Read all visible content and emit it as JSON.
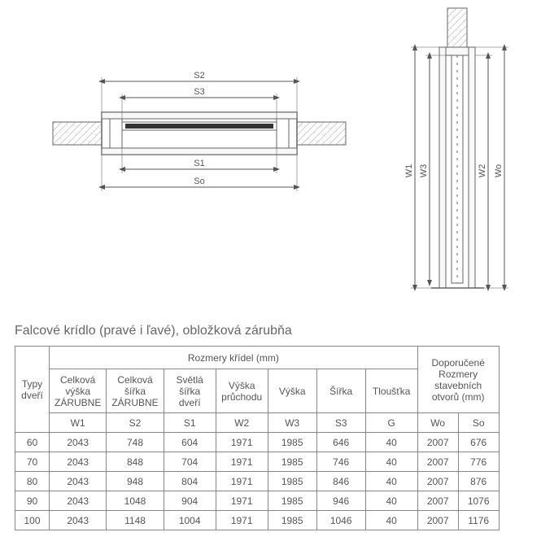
{
  "title": "Falcové krídlo (pravé i ľavé), obložková zárubňa",
  "diagram": {
    "labels": {
      "S1": "S1",
      "S2": "S2",
      "S3": "S3",
      "So": "So",
      "W1": "W1",
      "W2": "W2",
      "W3": "W3",
      "Wo": "Wo"
    },
    "colors": {
      "stroke": "#666666",
      "hatch": "#999999",
      "dim": "#555555",
      "background": "#ffffff"
    }
  },
  "table": {
    "headers": {
      "typy": "Typy dveří",
      "rozmery": "Rozmery křídel (mm)",
      "doporucene": "Doporučené Rozmery stavebních otvorů (mm)"
    },
    "subheaders": {
      "cvz": "Celková výška ZÁRUBNE",
      "csz": "Celková šířka ZÁRUBNE",
      "ss": "Světlá šířka dveří",
      "vp": "Výška průchodu",
      "v": "Výška",
      "s": "Šířka",
      "t": "Tloušťka"
    },
    "codes": {
      "cvz": "W1",
      "csz": "S2",
      "ss": "S1",
      "vp": "W2",
      "v": "W3",
      "s": "S3",
      "t": "G",
      "wo": "Wo",
      "so": "So"
    },
    "rows": [
      {
        "typ": "60",
        "w1": "2043",
        "s2": "748",
        "s1": "604",
        "w2": "1971",
        "w3": "1985",
        "s3": "646",
        "g": "40",
        "wo": "2007",
        "so": "676"
      },
      {
        "typ": "70",
        "w1": "2043",
        "s2": "848",
        "s1": "704",
        "w2": "1971",
        "w3": "1985",
        "s3": "746",
        "g": "40",
        "wo": "2007",
        "so": "776"
      },
      {
        "typ": "80",
        "w1": "2043",
        "s2": "948",
        "s1": "804",
        "w2": "1971",
        "w3": "1985",
        "s3": "846",
        "g": "40",
        "wo": "2007",
        "so": "876"
      },
      {
        "typ": "90",
        "w1": "2043",
        "s2": "1048",
        "s1": "904",
        "w2": "1971",
        "w3": "1985",
        "s3": "946",
        "g": "40",
        "wo": "2007",
        "so": "1076"
      },
      {
        "typ": "100",
        "w1": "2043",
        "s2": "1148",
        "s1": "1004",
        "w2": "1971",
        "w3": "1985",
        "s3": "1046",
        "g": "40",
        "wo": "2007",
        "so": "1176"
      }
    ]
  }
}
